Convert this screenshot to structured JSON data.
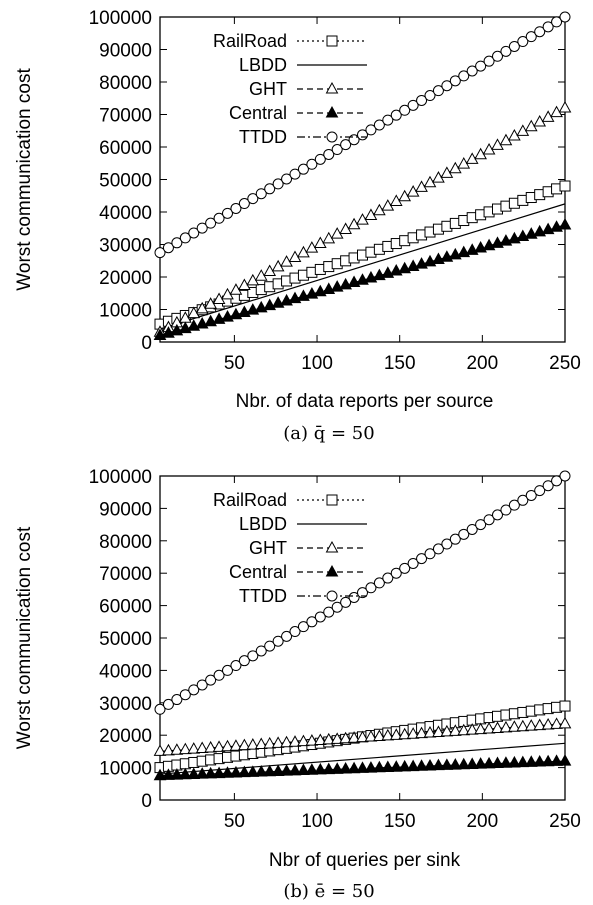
{
  "chart_data": [
    {
      "type": "line",
      "caption": "(a) q̄ = 50",
      "xlabel": "Nbr. of data reports per source",
      "ylabel": "Worst communication cost",
      "xlim": [
        5,
        250
      ],
      "ylim": [
        0,
        100000
      ],
      "xticks": [
        50,
        100,
        150,
        200,
        250
      ],
      "yticks": [
        0,
        10000,
        20000,
        30000,
        40000,
        50000,
        60000,
        70000,
        80000,
        90000,
        100000
      ],
      "legend_position": "top-left",
      "series": [
        {
          "name": "RailRoad",
          "style": "dotted",
          "marker": "square",
          "x": [
            5,
            250
          ],
          "y": [
            5500,
            48000
          ]
        },
        {
          "name": "LBDD",
          "style": "solid",
          "marker": "none",
          "x": [
            5,
            250
          ],
          "y": [
            4000,
            42500
          ]
        },
        {
          "name": "GHT",
          "style": "dashed",
          "marker": "triangle-open",
          "x": [
            5,
            250
          ],
          "y": [
            3000,
            72000
          ]
        },
        {
          "name": "Central",
          "style": "dashed",
          "marker": "triangle-filled",
          "x": [
            5,
            250
          ],
          "y": [
            2000,
            36000
          ]
        },
        {
          "name": "TTDD",
          "style": "dashdot",
          "marker": "circle",
          "x": [
            5,
            250
          ],
          "y": [
            27500,
            100000
          ]
        }
      ]
    },
    {
      "type": "line",
      "caption": "(b) ē = 50",
      "xlabel": "Nbr of queries per sink",
      "ylabel": "Worst communication cost",
      "xlim": [
        5,
        250
      ],
      "ylim": [
        0,
        100000
      ],
      "xticks": [
        50,
        100,
        150,
        200,
        250
      ],
      "yticks": [
        0,
        10000,
        20000,
        30000,
        40000,
        50000,
        60000,
        70000,
        80000,
        90000,
        100000
      ],
      "legend_position": "top-left",
      "series": [
        {
          "name": "RailRoad",
          "style": "dotted",
          "marker": "square",
          "x": [
            5,
            250
          ],
          "y": [
            10000,
            29000
          ]
        },
        {
          "name": "LBDD",
          "style": "solid",
          "marker": "none",
          "x": [
            5,
            250
          ],
          "y": [
            8000,
            17500
          ]
        },
        {
          "name": "GHT",
          "style": "dashed",
          "marker": "triangle-open",
          "x": [
            5,
            250
          ],
          "y": [
            15000,
            23500
          ]
        },
        {
          "name": "Central",
          "style": "dashed",
          "marker": "triangle-filled",
          "x": [
            5,
            250
          ],
          "y": [
            7500,
            12000
          ]
        },
        {
          "name": "TTDD",
          "style": "dashdot",
          "marker": "circle",
          "x": [
            5,
            250
          ],
          "y": [
            28000,
            100000
          ]
        }
      ]
    }
  ]
}
